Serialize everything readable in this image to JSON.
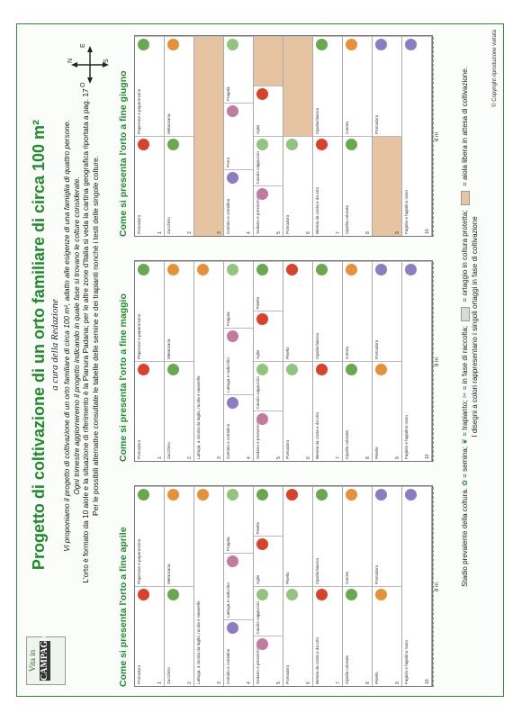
{
  "title": "Progetto di coltivazione di un orto familiare di circa 100 m²",
  "byline": "a cura della Redazione",
  "intro": {
    "l1": "Vi proponiamo il progetto di coltivazione di un orto familiare di circa 100 m², adatto alle esigenze di una famiglia di quattro persone.",
    "l2": "Ogni trimestre aggiorneremo il progetto indicando in quale fase si trovano le colture considerate.",
    "l3": "L'orto è formato da 10 aiole e la situazione di riferimento è la Pianura Padana; per le altre zone d'Italia si veda la cartina geografica riportata a pag. 17",
    "l4": "Per le possibili alternative consultate le tabelle delle semine e dei trapianti nonché i testi delle singole colture."
  },
  "logo": {
    "l1": "Vita in",
    "l2": "CAMPAGNA"
  },
  "compass": {
    "n": "N",
    "s": "S",
    "e": "E",
    "o": "O"
  },
  "dims": {
    "width": "8 m",
    "depth": "11,8 m",
    "bed": "0,8 m",
    "path": "1 m"
  },
  "colors": {
    "green": "#1f8a2a",
    "free": "#e6c3a1",
    "covered": "#d9d9d9"
  },
  "panels": [
    {
      "title": "Come si presenta l'orto a fine aprile",
      "beds": [
        [
          {
            "t": "Pomodoro"
          },
          {
            "t": "Peperone e peperoncino"
          }
        ],
        [
          {
            "t": "Zucchino"
          },
          {
            "t": "Melanzana"
          }
        ],
        [
          {
            "t": "Lattuga, a cicoria da taglio, rucola e ravanello"
          }
        ],
        [
          {
            "t": "Cetriolo e cetriolino"
          },
          {
            "t": "Lattuga e radicchio"
          },
          {
            "t": "Fragola"
          }
        ],
        [
          {
            "t": "Sedano e prezzemolo"
          },
          {
            "t": "Cavolo cappuccio"
          },
          {
            "t": "Aglio"
          },
          {
            "t": "Pisello"
          }
        ],
        [
          {
            "t": "Pomodoro"
          },
          {
            "t": "Pisello"
          }
        ],
        [
          {
            "t": "Bietola da costa e da orto"
          },
          {
            "t": "Cipolla bianca"
          }
        ],
        [
          {
            "t": "Cipolla colorata"
          },
          {
            "t": "Carota"
          }
        ],
        [
          {
            "t": "Pisello"
          },
          {
            "t": "Pomodoro"
          }
        ],
        [
          {
            "t": "Fagiolo e fagiolino nano"
          }
        ]
      ]
    },
    {
      "title": "Come si presenta l'orto a fine maggio",
      "beds": [
        [
          {
            "t": "Pomodoro"
          },
          {
            "t": "Peperone e peperoncino"
          }
        ],
        [
          {
            "t": "Zucchino"
          },
          {
            "t": "Melanzana"
          }
        ],
        [
          {
            "t": "Lattuga, a cicoria da taglio, rucola e ravanello"
          }
        ],
        [
          {
            "t": "Cetriolo e cetriolino"
          },
          {
            "t": "Lattuga e radicchio"
          },
          {
            "t": "Fragola"
          }
        ],
        [
          {
            "t": "Sedano e prezzemolo"
          },
          {
            "t": "Cavolo cappuccio"
          },
          {
            "t": "Aglio"
          },
          {
            "t": "Pisello"
          }
        ],
        [
          {
            "t": "Pomodoro"
          },
          {
            "t": "Pisello"
          }
        ],
        [
          {
            "t": "Bietola da costa e da orto"
          },
          {
            "t": "Cipolla bianca"
          }
        ],
        [
          {
            "t": "Cipolla colorata"
          },
          {
            "t": "Carota"
          }
        ],
        [
          {
            "t": "Pisello"
          },
          {
            "t": "Pomodoro"
          }
        ],
        [
          {
            "t": "Fagiolo e fagiolino nano"
          }
        ]
      ]
    },
    {
      "title": "Come si presenta l'orto a fine giugno",
      "beds": [
        [
          {
            "t": "Pomodoro"
          },
          {
            "t": "Peperone e peperoncino"
          }
        ],
        [
          {
            "t": "Zucchino"
          },
          {
            "t": "Melanzana"
          }
        ],
        [
          {
            "t": "",
            "free": true
          }
        ],
        [
          {
            "t": "Cetriolo e cetriolino"
          },
          {
            "t": "Porro"
          },
          {
            "t": "Fragola"
          }
        ],
        [
          {
            "t": "Sedano e prezzemolo"
          },
          {
            "t": "Cavolo cappuccio"
          },
          {
            "t": "Aglio"
          },
          {
            "t": "",
            "free": true
          }
        ],
        [
          {
            "t": "Pomodoro"
          },
          {
            "t": "",
            "free": true
          }
        ],
        [
          {
            "t": "Bietola da costa e da orto"
          },
          {
            "t": "Cipolla bianca"
          }
        ],
        [
          {
            "t": "Cipolla colorata"
          },
          {
            "t": "Carota"
          }
        ],
        [
          {
            "t": "",
            "free": true
          },
          {
            "t": "Pomodoro"
          }
        ],
        [
          {
            "t": "Fagiolo e fagiolino nano"
          }
        ]
      ]
    }
  ],
  "legend": {
    "a": "Stadio prevalente della coltura.",
    "b": "= semina;",
    "c": "= trapianto;",
    "d": "= in fase di raccolta;",
    "e": "= ortaggio in coltura protetta;",
    "f": "= aiola libera in attesa di coltivazione.",
    "g": "I disegni a colori rappresentano i singoli ortaggi in fase di coltivazione"
  },
  "copyright": "© Copyright riproduzione vietata"
}
